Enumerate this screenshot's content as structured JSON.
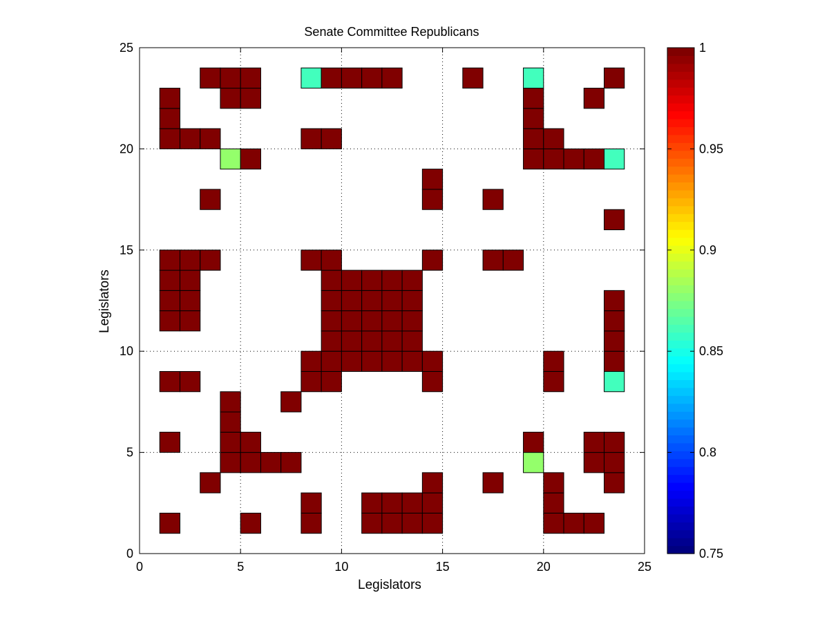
{
  "chart_data": {
    "type": "heatmap",
    "title": "Senate Committee Republicans",
    "xlabel": "Legislators",
    "ylabel": "Legislators",
    "xlim": [
      0,
      25
    ],
    "ylim": [
      0,
      25
    ],
    "xticks": [
      0,
      5,
      10,
      15,
      20,
      25
    ],
    "yticks": [
      0,
      5,
      10,
      15,
      20,
      25
    ],
    "grid": true,
    "colormap": "jet",
    "colorbar": {
      "range": [
        0.75,
        1
      ],
      "ticks": [
        0.75,
        0.8,
        0.85,
        0.9,
        0.95,
        1
      ],
      "tick_labels": [
        "0.75",
        "0.8",
        "0.85",
        "0.9",
        "0.95",
        "1"
      ]
    },
    "cells": [
      [
        1,
        1,
        1
      ],
      [
        5,
        1,
        1
      ],
      [
        8,
        1,
        1
      ],
      [
        11,
        1,
        1
      ],
      [
        12,
        1,
        1
      ],
      [
        13,
        1,
        1
      ],
      [
        14,
        1,
        1
      ],
      [
        20,
        1,
        1
      ],
      [
        21,
        1,
        1
      ],
      [
        22,
        1,
        1
      ],
      [
        8,
        2,
        1
      ],
      [
        11,
        2,
        1
      ],
      [
        12,
        2,
        1
      ],
      [
        13,
        2,
        1
      ],
      [
        14,
        2,
        1
      ],
      [
        20,
        2,
        1
      ],
      [
        3,
        3,
        1
      ],
      [
        14,
        3,
        1
      ],
      [
        17,
        3,
        1
      ],
      [
        20,
        3,
        1
      ],
      [
        23,
        3,
        1
      ],
      [
        4,
        4,
        1
      ],
      [
        5,
        4,
        1
      ],
      [
        6,
        4,
        1
      ],
      [
        7,
        4,
        1
      ],
      [
        19,
        4,
        0.88
      ],
      [
        22,
        4,
        1
      ],
      [
        23,
        4,
        1
      ],
      [
        1,
        5,
        1
      ],
      [
        4,
        5,
        1
      ],
      [
        5,
        5,
        1
      ],
      [
        19,
        5,
        1
      ],
      [
        22,
        5,
        1
      ],
      [
        23,
        5,
        1
      ],
      [
        4,
        6,
        1
      ],
      [
        4,
        7,
        1
      ],
      [
        7,
        7,
        1
      ],
      [
        1,
        8,
        1
      ],
      [
        2,
        8,
        1
      ],
      [
        8,
        8,
        1
      ],
      [
        9,
        8,
        1
      ],
      [
        14,
        8,
        1
      ],
      [
        20,
        8,
        1
      ],
      [
        23,
        8,
        0.86
      ],
      [
        8,
        9,
        1
      ],
      [
        9,
        9,
        1
      ],
      [
        10,
        9,
        1
      ],
      [
        11,
        9,
        1
      ],
      [
        12,
        9,
        1
      ],
      [
        13,
        9,
        1
      ],
      [
        14,
        9,
        1
      ],
      [
        20,
        9,
        1
      ],
      [
        23,
        9,
        1
      ],
      [
        9,
        10,
        1
      ],
      [
        10,
        10,
        1
      ],
      [
        11,
        10,
        1
      ],
      [
        12,
        10,
        1
      ],
      [
        13,
        10,
        1
      ],
      [
        23,
        10,
        1
      ],
      [
        1,
        11,
        1
      ],
      [
        2,
        11,
        1
      ],
      [
        9,
        11,
        1
      ],
      [
        10,
        11,
        1
      ],
      [
        11,
        11,
        1
      ],
      [
        12,
        11,
        1
      ],
      [
        13,
        11,
        1
      ],
      [
        23,
        11,
        1
      ],
      [
        1,
        12,
        1
      ],
      [
        2,
        12,
        1
      ],
      [
        9,
        12,
        1
      ],
      [
        10,
        12,
        1
      ],
      [
        11,
        12,
        1
      ],
      [
        12,
        12,
        1
      ],
      [
        13,
        12,
        1
      ],
      [
        23,
        12,
        1
      ],
      [
        1,
        13,
        1
      ],
      [
        2,
        13,
        1
      ],
      [
        9,
        13,
        1
      ],
      [
        10,
        13,
        1
      ],
      [
        11,
        13,
        1
      ],
      [
        12,
        13,
        1
      ],
      [
        13,
        13,
        1
      ],
      [
        1,
        14,
        1
      ],
      [
        2,
        14,
        1
      ],
      [
        3,
        14,
        1
      ],
      [
        8,
        14,
        1
      ],
      [
        9,
        14,
        1
      ],
      [
        14,
        14,
        1
      ],
      [
        17,
        14,
        1
      ],
      [
        18,
        14,
        1
      ],
      [
        23,
        16,
        1
      ],
      [
        3,
        17,
        1
      ],
      [
        14,
        17,
        1
      ],
      [
        17,
        17,
        1
      ],
      [
        14,
        18,
        1
      ],
      [
        4,
        19,
        0.88
      ],
      [
        5,
        19,
        1
      ],
      [
        19,
        19,
        1
      ],
      [
        20,
        19,
        1
      ],
      [
        21,
        19,
        1
      ],
      [
        22,
        19,
        1
      ],
      [
        23,
        19,
        0.86
      ],
      [
        1,
        20,
        1
      ],
      [
        2,
        20,
        1
      ],
      [
        3,
        20,
        1
      ],
      [
        8,
        20,
        1
      ],
      [
        9,
        20,
        1
      ],
      [
        19,
        20,
        1
      ],
      [
        20,
        20,
        1
      ],
      [
        1,
        21,
        1
      ],
      [
        19,
        21,
        1
      ],
      [
        1,
        22,
        1
      ],
      [
        4,
        22,
        1
      ],
      [
        5,
        22,
        1
      ],
      [
        19,
        22,
        1
      ],
      [
        22,
        22,
        1
      ],
      [
        3,
        23,
        1
      ],
      [
        4,
        23,
        1
      ],
      [
        5,
        23,
        1
      ],
      [
        8,
        23,
        0.86
      ],
      [
        9,
        23,
        1
      ],
      [
        10,
        23,
        1
      ],
      [
        11,
        23,
        1
      ],
      [
        12,
        23,
        1
      ],
      [
        16,
        23,
        1
      ],
      [
        19,
        23,
        0.86
      ],
      [
        23,
        23,
        1
      ]
    ]
  }
}
